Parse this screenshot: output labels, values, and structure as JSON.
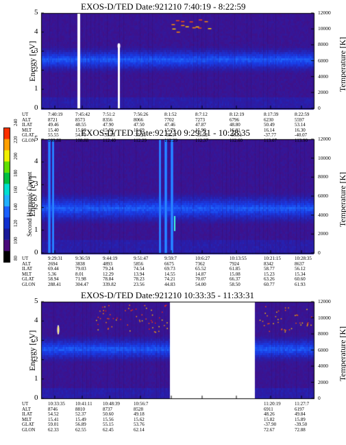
{
  "colorbar": {
    "label": "Second Harmonic Current",
    "ticks": [
      "240",
      "220",
      "200",
      "180",
      "160",
      "140",
      "120",
      "100",
      "80"
    ],
    "colors": [
      "#000000",
      "#4a0a7a",
      "#1a1a9a",
      "#1030d0",
      "#1a60ff",
      "#20b0ff",
      "#00e0d0",
      "#00c040",
      "#60e000",
      "#f0f000",
      "#ffa000",
      "#ff3000"
    ]
  },
  "chart_data": [
    {
      "type": "heatmap",
      "title": "EXOS-D/TED   Date:921210  7:40:19 - 8:22:59",
      "ylabel": "Energy [eV]",
      "ylabel_right": "Temperature [K]",
      "yticks": [
        "0",
        "1",
        "2",
        "3",
        "4",
        "5"
      ],
      "yticks_right": [
        "0",
        "2000",
        "4000",
        "6000",
        "8000",
        "10000",
        "12000"
      ],
      "ylim": [
        0,
        5
      ],
      "ylim_right": [
        0,
        12000
      ],
      "row_labels": [
        "UT",
        "ALT",
        "ILAT",
        "MLT",
        "GLAT",
        "GLON"
      ],
      "columns": [
        [
          "7:40:19",
          "8721",
          "49.46",
          "15.40",
          "55.55",
          "108.88"
        ],
        [
          "7:45:42",
          "8573",
          "48.55",
          "15.50",
          "54.70",
          "108.88"
        ],
        [
          "7:51:2",
          "8356",
          "47.90",
          "15.59",
          "-35.55",
          "112.40"
        ],
        [
          "7:56:26",
          "8066",
          "47.50",
          "15.69",
          "-35.21",
          "112.29"
        ],
        [
          "8:1:52",
          "7702",
          "47.46",
          "15.79",
          "-35.17",
          "112.29"
        ],
        [
          "8:7:12",
          "7273",
          "47.87",
          "15.90",
          "-35.52",
          "112.37"
        ],
        [
          "8:12:19",
          "6796",
          "48.80",
          "16.01",
          "-36.31",
          "112.60"
        ],
        [
          "8:17:39",
          "6230",
          "50.49",
          "16.14",
          "-37.77",
          "113.07"
        ],
        [
          "8:22:59",
          "5597",
          "53.14",
          "16.30",
          "-40.07",
          "113.90"
        ]
      ]
    },
    {
      "type": "heatmap",
      "title": "EXOS-D/TED   Date:921210  9:29:31 - 10:28:35",
      "ylabel": "Energy [eV]",
      "ylabel_right": "Temperature [K]",
      "yticks": [
        "0",
        "1",
        "2",
        "3",
        "4",
        "5"
      ],
      "yticks_right": [
        "0",
        "2000",
        "4000",
        "6000",
        "8000",
        "10000",
        "12000"
      ],
      "ylim": [
        0,
        5
      ],
      "ylim_right": [
        0,
        12000
      ],
      "row_labels": [
        "UT",
        "ALT",
        "ILAT",
        "MLT",
        "GLAT",
        "GLON"
      ],
      "columns": [
        [
          "9:29:31",
          "2694",
          "69.44",
          "5.36",
          "58.94",
          "288.41"
        ],
        [
          "9:36:59",
          "3838",
          "79.03",
          "8.01",
          "71.98",
          "304.47"
        ],
        [
          "9:44:19",
          "4893",
          "79.24",
          "12.29",
          "78.84",
          "339.82"
        ],
        [
          "9:51:47",
          "5856",
          "74.54",
          "13.94",
          "78.23",
          "23.56"
        ],
        [
          "9:59:7",
          "6675",
          "69.73",
          "14.55",
          "74.21",
          "44.83"
        ],
        [
          "10:6:27",
          "7362",
          "65.52",
          "14.87",
          "70.07",
          "54.00"
        ],
        [
          "10:13:55",
          "7924",
          "61.85",
          "15.08",
          "66.37",
          "58.50"
        ],
        [
          "10:21:15",
          "8342",
          "58.77",
          "15.23",
          "63.26",
          "60.77"
        ],
        [
          "10:28:35",
          "8637",
          "56.12",
          "15.34",
          "60.60",
          "61.93"
        ]
      ]
    },
    {
      "type": "heatmap",
      "title": "EXOS-D/TED   Date:921210  10:33:35 - 11:33:31",
      "ylabel": "Energy [eV]",
      "ylabel_right": "Temperature [K]",
      "yticks": [
        "0",
        "1",
        "2",
        "3",
        "4",
        "5"
      ],
      "yticks_right": [
        "0",
        "2000",
        "4000",
        "6000",
        "8000",
        "10000",
        "12000"
      ],
      "ylim": [
        0,
        5
      ],
      "ylim_right": [
        0,
        12000
      ],
      "row_labels": [
        "UT",
        "ALT",
        "ILAT",
        "MLT",
        "GLAT",
        "GLON"
      ],
      "columns": [
        [
          "10:33:35",
          "8746",
          "54.52",
          "15.41",
          "59.01",
          "62.33"
        ],
        [
          "10:41:11",
          "8810",
          "52.37",
          "15.49",
          "56.89",
          "62.55"
        ],
        [
          "10:48:39",
          "8737",
          "50.60",
          "15.56",
          "55.15",
          "62.45"
        ],
        [
          "10:56:7",
          "8528",
          "49.18",
          "15.62",
          "53.76",
          "62.14"
        ],
        [
          "",
          "",
          "",
          "",
          "",
          ""
        ],
        [
          "",
          "",
          "",
          "",
          "",
          ""
        ],
        [
          "",
          "",
          "",
          "",
          "",
          ""
        ],
        [
          "11:20:19",
          "6911",
          "48.26",
          "15.82",
          "-37.90",
          "72.67"
        ],
        [
          "11:27:7",
          "6197",
          "49.84",
          "15.89",
          "-39.50",
          "72.88"
        ]
      ]
    }
  ]
}
